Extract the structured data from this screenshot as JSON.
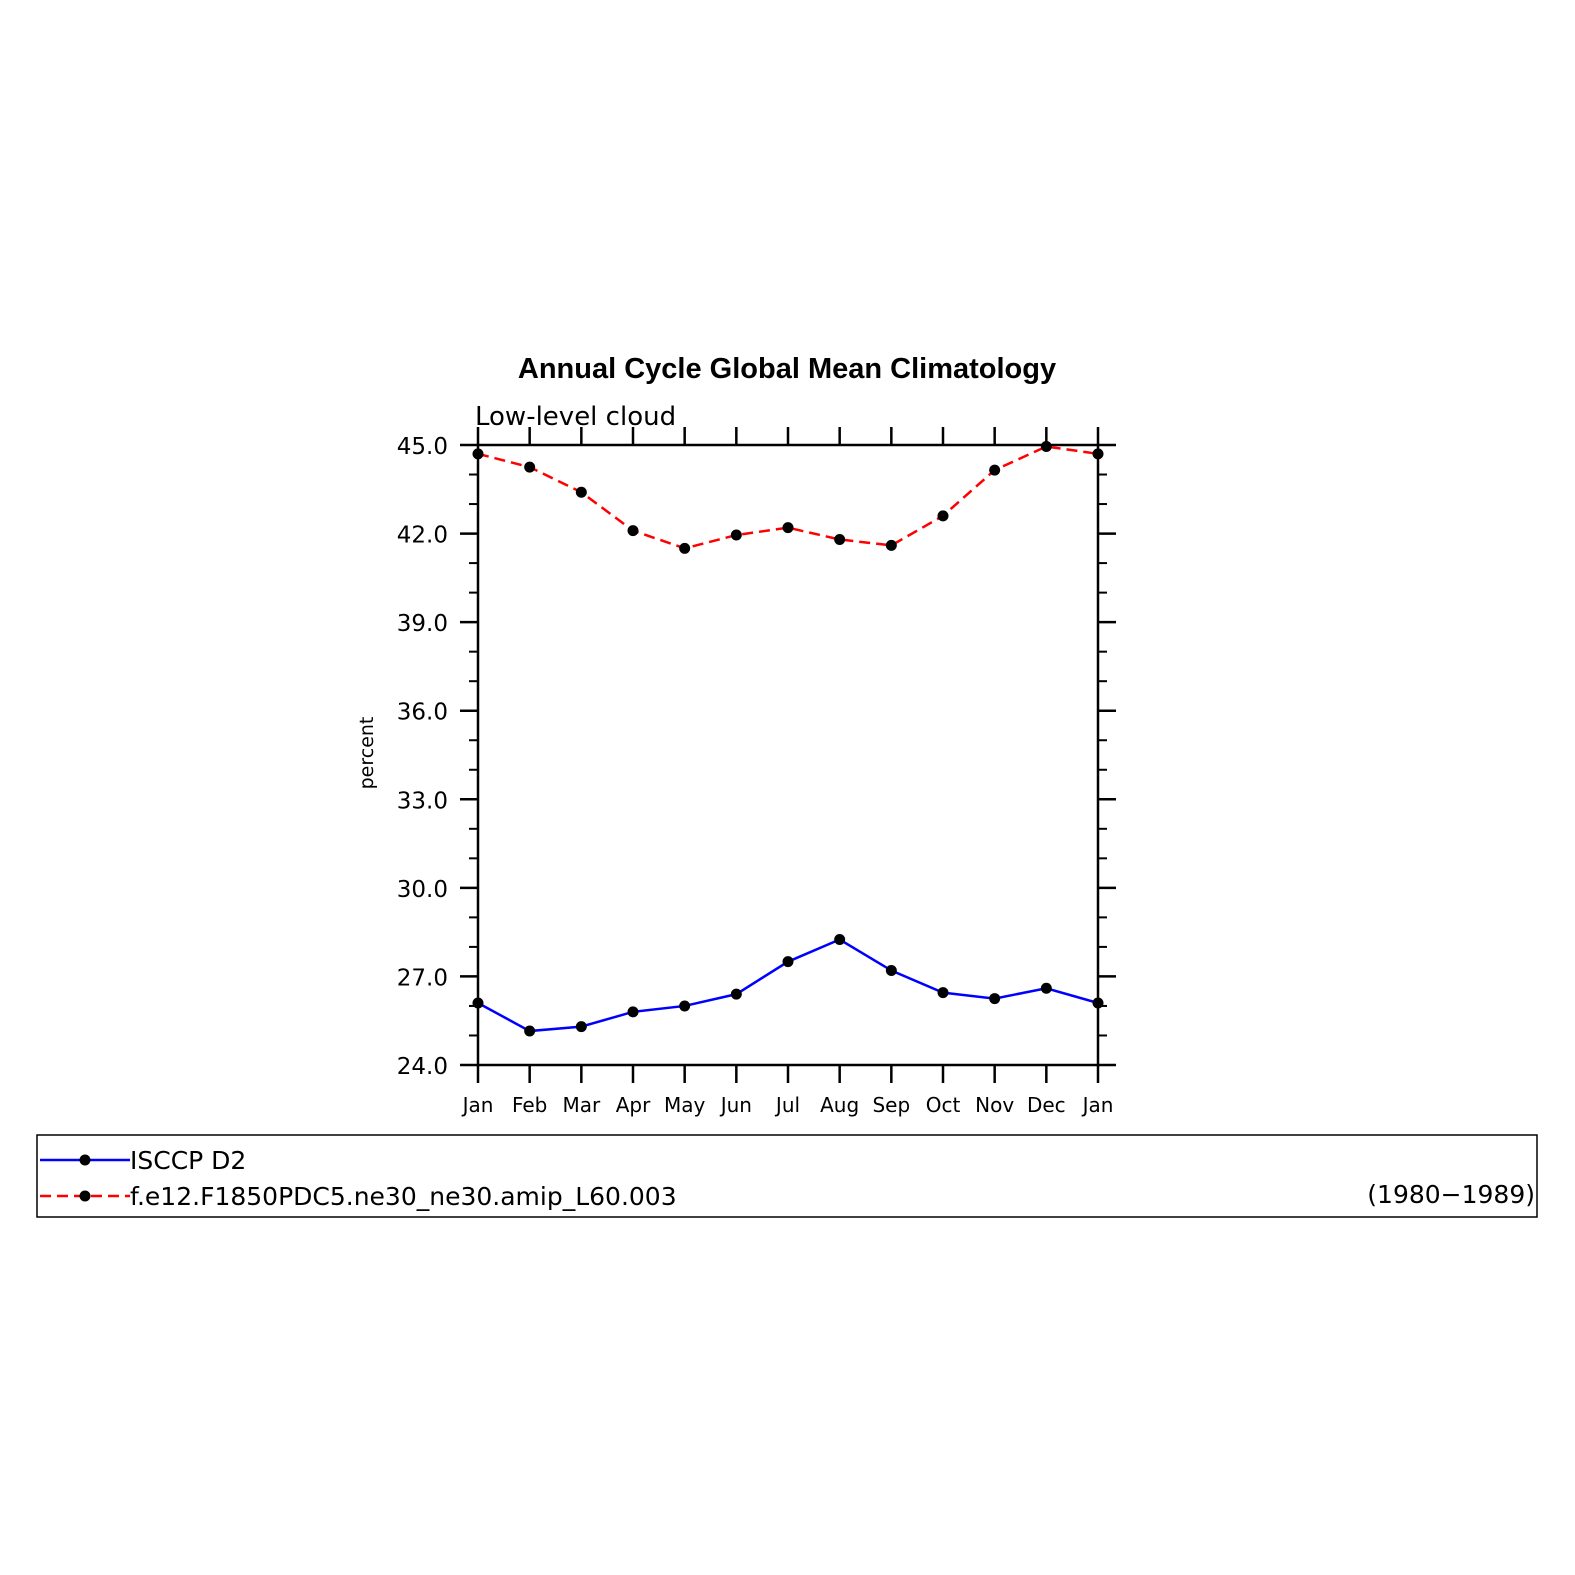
{
  "chart_data": {
    "type": "line",
    "title": "Annual Cycle Global Mean Climatology",
    "subtitle": "Low-level cloud",
    "xlabel": "",
    "ylabel": "percent",
    "ylim": [
      24.0,
      45.0
    ],
    "y_major_ticks": [
      24.0,
      27.0,
      30.0,
      33.0,
      36.0,
      39.0,
      42.0,
      45.0
    ],
    "y_tick_labels": [
      "24.0",
      "27.0",
      "30.0",
      "33.0",
      "36.0",
      "39.0",
      "42.0",
      "45.0"
    ],
    "y_minor_step": 1.0,
    "categories": [
      "Jan",
      "Feb",
      "Mar",
      "Apr",
      "May",
      "Jun",
      "Jul",
      "Aug",
      "Sep",
      "Oct",
      "Nov",
      "Dec",
      "Jan"
    ],
    "grid": false,
    "legend_placement": "bottom",
    "legend_period": "(1980−1989)",
    "series": [
      {
        "name": "ISCCP D2",
        "color": "#0000ff",
        "dash": "solid",
        "values": [
          26.1,
          25.15,
          25.3,
          25.8,
          26.0,
          26.4,
          27.5,
          28.25,
          27.2,
          26.45,
          26.25,
          26.6,
          26.1
        ]
      },
      {
        "name": "f.e12.F1850PDC5.ne30_ne30.amip_L60.003",
        "color": "#ff0000",
        "dash": "dashed",
        "values": [
          44.7,
          44.25,
          43.4,
          42.1,
          41.5,
          41.95,
          42.2,
          41.8,
          41.6,
          42.6,
          44.15,
          44.95,
          44.7
        ]
      }
    ]
  }
}
